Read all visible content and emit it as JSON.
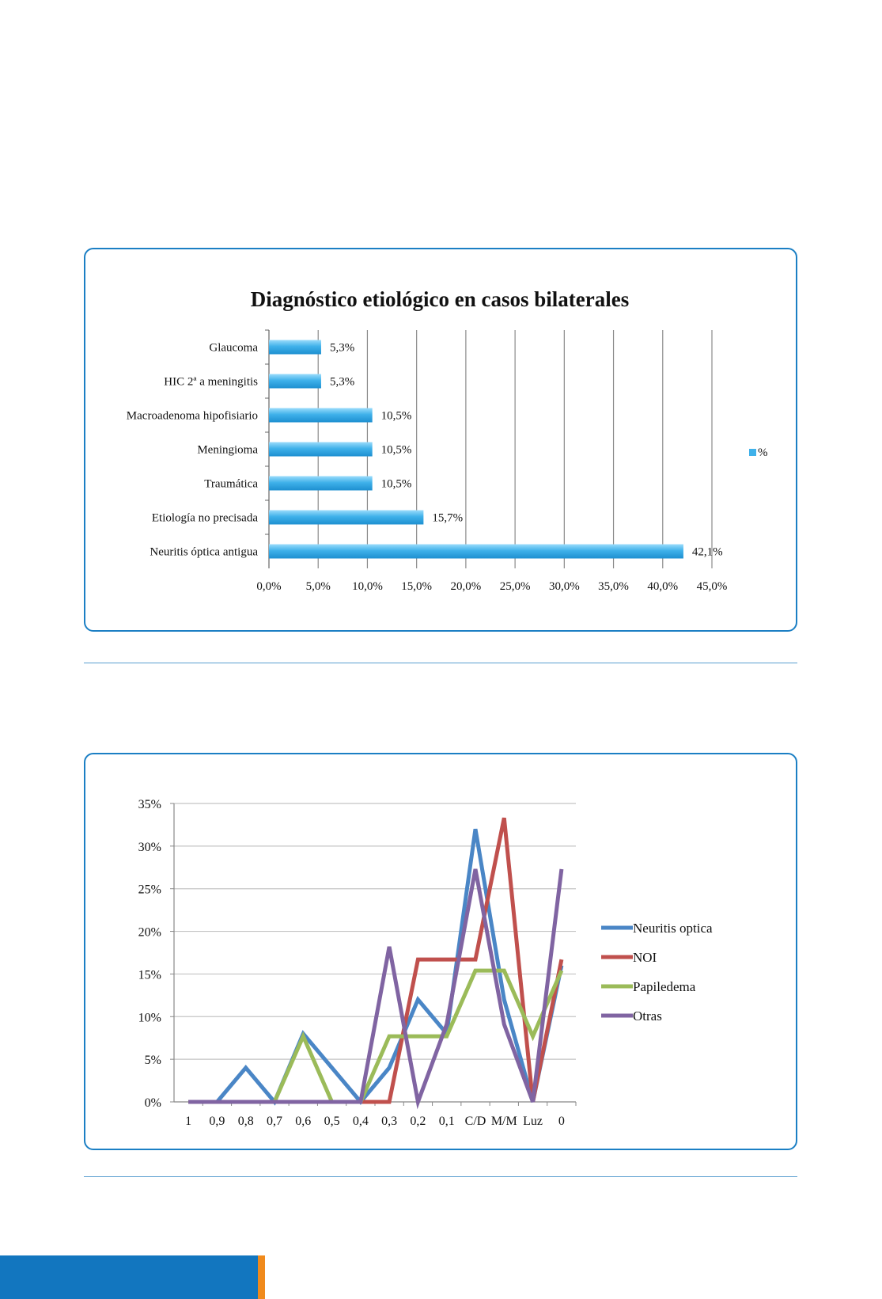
{
  "charts": {
    "bar": {
      "type": "bar",
      "title": "Diagnóstico etiológico en casos bilaterales",
      "categories": [
        "Glaucoma",
        "HIC 2ª a meningitis",
        "Macroadenoma hipofisiario",
        "Meningioma",
        "Traumática",
        "Etiología no precisada",
        "Neuritis óptica antigua"
      ],
      "values": [
        5.3,
        5.3,
        10.5,
        10.5,
        10.5,
        15.7,
        42.1
      ],
      "value_labels": [
        "5,3%",
        "5,3%",
        "10,5%",
        "10,5%",
        "10,5%",
        "15,7%",
        "42,1%"
      ],
      "xlim": [
        0,
        45
      ],
      "x_ticks": [
        "0,0%",
        "5,0%",
        "10,0%",
        "15,0%",
        "20,0%",
        "25,0%",
        "30,0%",
        "35,0%",
        "40,0%",
        "45,0%"
      ],
      "legend": "%",
      "legend_position": "right",
      "grid": true,
      "bar_color": "#3fb1ea"
    },
    "line": {
      "type": "line",
      "categories": [
        "1",
        "0,9",
        "0,8",
        "0,7",
        "0,6",
        "0,5",
        "0,4",
        "0,3",
        "0,2",
        "0,1",
        "C/D",
        "M/M",
        "Luz",
        "0"
      ],
      "ylim": [
        0,
        35
      ],
      "y_ticks": [
        "0%",
        "5%",
        "10%",
        "15%",
        "20%",
        "25%",
        "30%",
        "35%"
      ],
      "grid": true,
      "legend_position": "right",
      "series": [
        {
          "name": "Neuritis optica",
          "color": "#4a86c6",
          "values": [
            0,
            0,
            4,
            0,
            8,
            4,
            0,
            4,
            12,
            8,
            32,
            12,
            0,
            16
          ]
        },
        {
          "name": "NOI",
          "color": "#c0504d",
          "values": [
            0,
            0,
            0,
            0,
            0,
            0,
            0,
            0,
            16.7,
            16.7,
            16.7,
            33.3,
            0,
            16.7
          ]
        },
        {
          "name": "Papiledema",
          "color": "#9bbb59",
          "values": [
            0,
            0,
            0,
            0,
            7.7,
            0,
            0,
            7.7,
            7.7,
            7.7,
            15.4,
            15.4,
            7.7,
            15.4
          ]
        },
        {
          "name": "Otras",
          "color": "#8064a2",
          "values": [
            0,
            0,
            0,
            0,
            0,
            0,
            0,
            18.2,
            0,
            9.1,
            27.3,
            9.1,
            0,
            27.3
          ]
        }
      ]
    }
  }
}
